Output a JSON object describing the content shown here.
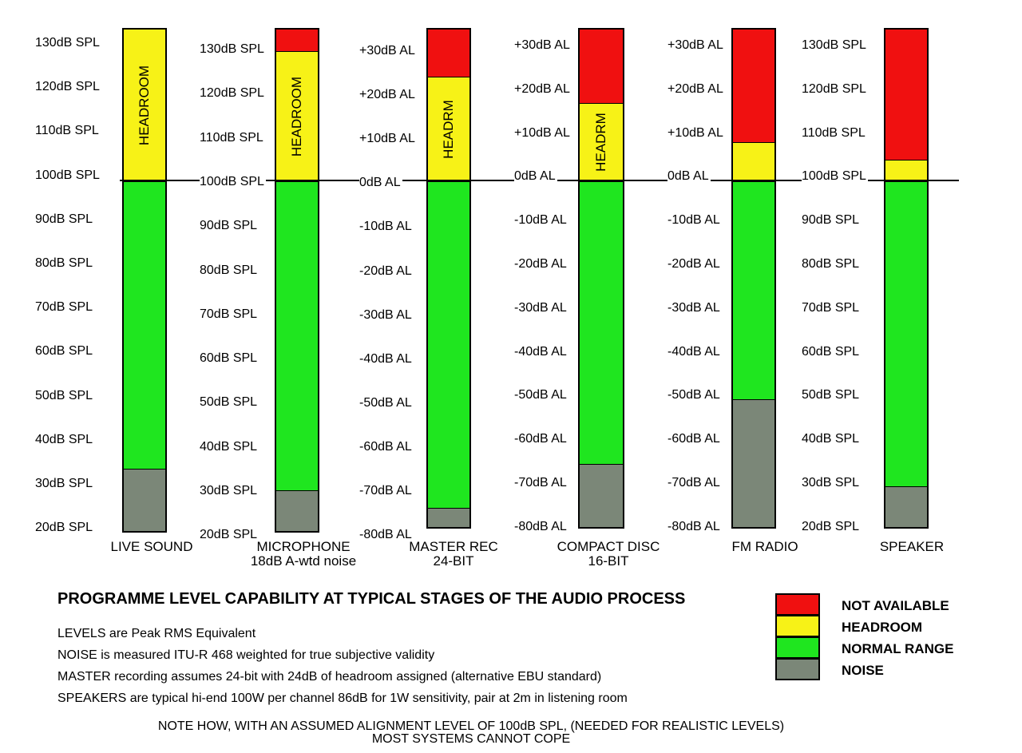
{
  "colors": {
    "not_available": "#f01010",
    "headroom": "#f7f217",
    "normal_range": "#1fe61f",
    "noise": "#7b8778"
  },
  "stages": [
    {
      "caption": [
        "LIVE SOUND"
      ],
      "axis_labels": [
        "130dB SPL",
        "120dB SPL",
        "110dB SPL",
        "100dB SPL",
        "90dB SPL",
        "80dB SPL",
        "70dB SPL",
        "60dB SPL",
        "50dB SPL",
        "40dB SPL",
        "30dB SPL",
        "20dB SPL"
      ],
      "segments": [
        {
          "kind": "headroom",
          "from": 100,
          "to": 135,
          "label": "HEADROOM"
        },
        {
          "kind": "normal_range",
          "from": 34,
          "to": 100
        },
        {
          "kind": "noise",
          "from": 19,
          "to": 34
        }
      ]
    },
    {
      "caption": [
        "MICROPHONE",
        "18dB A-wtd noise"
      ],
      "axis_labels": [
        "130dB SPL",
        "120dB SPL",
        "110dB SPL",
        "100dB SPL",
        "90dB SPL",
        "80dB SPL",
        "70dB SPL",
        "60dB SPL",
        "50dB SPL",
        "40dB SPL",
        "30dB SPL",
        "20dB SPL"
      ],
      "segments": [
        {
          "kind": "not_available",
          "from": 130,
          "to": 135
        },
        {
          "kind": "headroom",
          "from": 100,
          "to": 130,
          "label": "HEADROOM"
        },
        {
          "kind": "normal_range",
          "from": 29,
          "to": 100
        },
        {
          "kind": "noise",
          "from": 19,
          "to": 29
        }
      ]
    },
    {
      "caption": [
        "MASTER REC",
        "24-BIT"
      ],
      "axis_labels": [
        "+30dB AL",
        "+20dB AL",
        "+10dB AL",
        "0dB AL",
        "-10dB AL",
        "-20dB AL",
        "-30dB AL",
        "-40dB AL",
        "-50dB AL",
        "-60dB AL",
        "-70dB AL",
        "-80dB AL"
      ],
      "segments": [
        {
          "kind": "not_available",
          "from": 24,
          "to": 35
        },
        {
          "kind": "headroom",
          "from": 0,
          "to": 24,
          "label": "HEADRM"
        },
        {
          "kind": "normal_range",
          "from": -75,
          "to": 0
        },
        {
          "kind": "noise",
          "from": -80,
          "to": -75
        }
      ]
    },
    {
      "caption": [
        "COMPACT DISC",
        "16-BIT"
      ],
      "axis_labels": [
        "+30dB AL",
        "+20dB AL",
        "+10dB AL",
        "0dB AL",
        "-10dB AL",
        "-20dB AL",
        "-30dB AL",
        "-40dB AL",
        "-50dB AL",
        "-60dB AL",
        "-70dB AL",
        "-80dB AL"
      ],
      "segments": [
        {
          "kind": "not_available",
          "from": 18,
          "to": 35
        },
        {
          "kind": "headroom",
          "from": 0,
          "to": 18,
          "label": "HEADRM"
        },
        {
          "kind": "normal_range",
          "from": -65,
          "to": 0
        },
        {
          "kind": "noise",
          "from": -80,
          "to": -65
        }
      ]
    },
    {
      "caption": [
        "FM RADIO"
      ],
      "axis_labels": [
        "+30dB AL",
        "+20dB AL",
        "+10dB AL",
        "0dB AL",
        "-10dB AL",
        "-20dB AL",
        "-30dB AL",
        "-40dB AL",
        "-50dB AL",
        "-60dB AL",
        "-70dB AL",
        "-80dB AL"
      ],
      "segments": [
        {
          "kind": "not_available",
          "from": 9,
          "to": 35
        },
        {
          "kind": "headroom",
          "from": 0,
          "to": 9
        },
        {
          "kind": "normal_range",
          "from": -50,
          "to": 0
        },
        {
          "kind": "noise",
          "from": -80,
          "to": -50
        }
      ]
    },
    {
      "caption": [
        "SPEAKER"
      ],
      "axis_labels": [
        "130dB SPL",
        "120dB SPL",
        "110dB SPL",
        "100dB SPL",
        "90dB SPL",
        "80dB SPL",
        "70dB SPL",
        "60dB SPL",
        "50dB SPL",
        "40dB SPL",
        "30dB SPL",
        "20dB SPL"
      ],
      "segments": [
        {
          "kind": "not_available",
          "from": 105,
          "to": 135
        },
        {
          "kind": "headroom",
          "from": 100,
          "to": 105
        },
        {
          "kind": "normal_range",
          "from": 30,
          "to": 100
        },
        {
          "kind": "noise",
          "from": 20,
          "to": 30
        }
      ]
    }
  ],
  "title": "PROGRAMME LEVEL CAPABILITY AT TYPICAL STAGES OF THE AUDIO PROCESS",
  "notes": [
    "LEVELS are Peak RMS Equivalent",
    "NOISE is measured ITU-R 468 weighted for true subjective validity",
    "MASTER recording assumes 24-bit with 24dB of headroom assigned  (alternative EBU standard)",
    "SPEAKERS are typical hi-end 100W per channel 86dB for 1W sensitivity, pair at 2m in listening room"
  ],
  "legend": [
    {
      "kind": "not_available",
      "label": "NOT AVAILABLE"
    },
    {
      "kind": "headroom",
      "label": "HEADROOM"
    },
    {
      "kind": "normal_range",
      "label": "NORMAL RANGE"
    },
    {
      "kind": "noise",
      "label": "NOISE"
    }
  ],
  "footer": [
    "NOTE HOW, WITH AN ASSUMED ALIGNMENT LEVEL OF 100dB SPL, (NEEDED FOR REALISTIC LEVELS)",
    "MOST SYSTEMS CANNOT COPE"
  ]
}
